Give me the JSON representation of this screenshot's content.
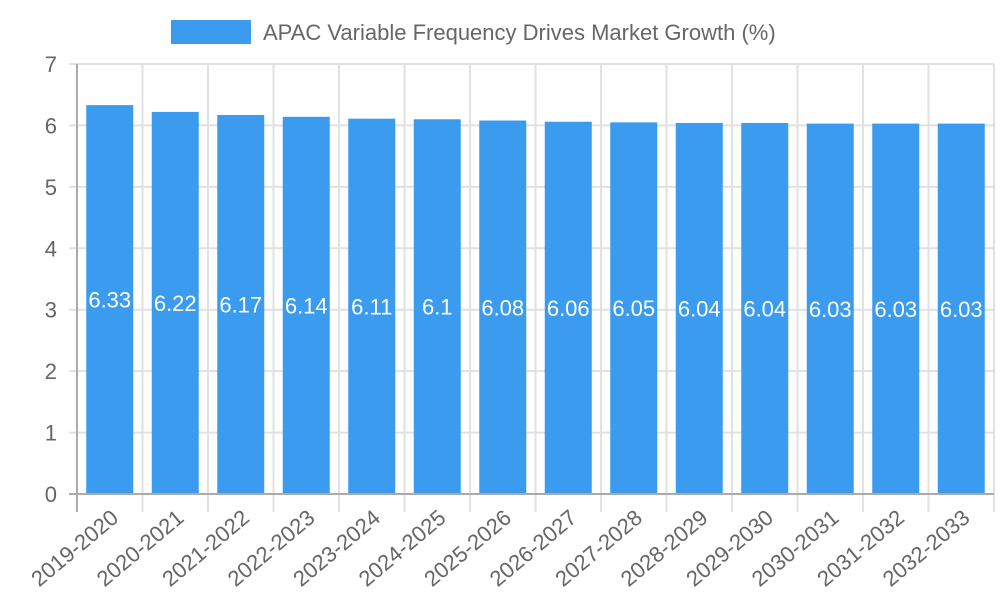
{
  "chart_data": {
    "type": "bar",
    "title": "",
    "xlabel": "",
    "ylabel": "",
    "legend": {
      "position": "top-center",
      "entries": [
        {
          "label": "APAC Variable Frequency Drives Market Growth (%)",
          "color": "#3a9bef"
        }
      ]
    },
    "categories": [
      "2019-2020",
      "2020-2021",
      "2021-2022",
      "2022-2023",
      "2023-2024",
      "2024-2025",
      "2025-2026",
      "2026-2027",
      "2027-2028",
      "2028-2029",
      "2029-2030",
      "2030-2031",
      "2031-2032",
      "2032-2033"
    ],
    "series": [
      {
        "name": "APAC Variable Frequency Drives Market Growth (%)",
        "color": "#3a9bef",
        "values": [
          6.33,
          6.22,
          6.17,
          6.14,
          6.11,
          6.1,
          6.08,
          6.06,
          6.05,
          6.04,
          6.04,
          6.03,
          6.03,
          6.03
        ],
        "labels": [
          "6.33",
          "6.22",
          "6.17",
          "6.14",
          "6.11",
          "6.1",
          "6.08",
          "6.06",
          "6.05",
          "6.04",
          "6.04",
          "6.03",
          "6.03",
          "6.03"
        ]
      }
    ],
    "ylim": [
      0,
      7
    ],
    "yticks": [
      "0",
      "1",
      "2",
      "3",
      "4",
      "5",
      "6",
      "7"
    ],
    "grid": true,
    "colors": {
      "grid": "#e1e1e1",
      "axis": "#aaaaaa",
      "text": "#666666",
      "data_label": "#ffffff"
    }
  }
}
